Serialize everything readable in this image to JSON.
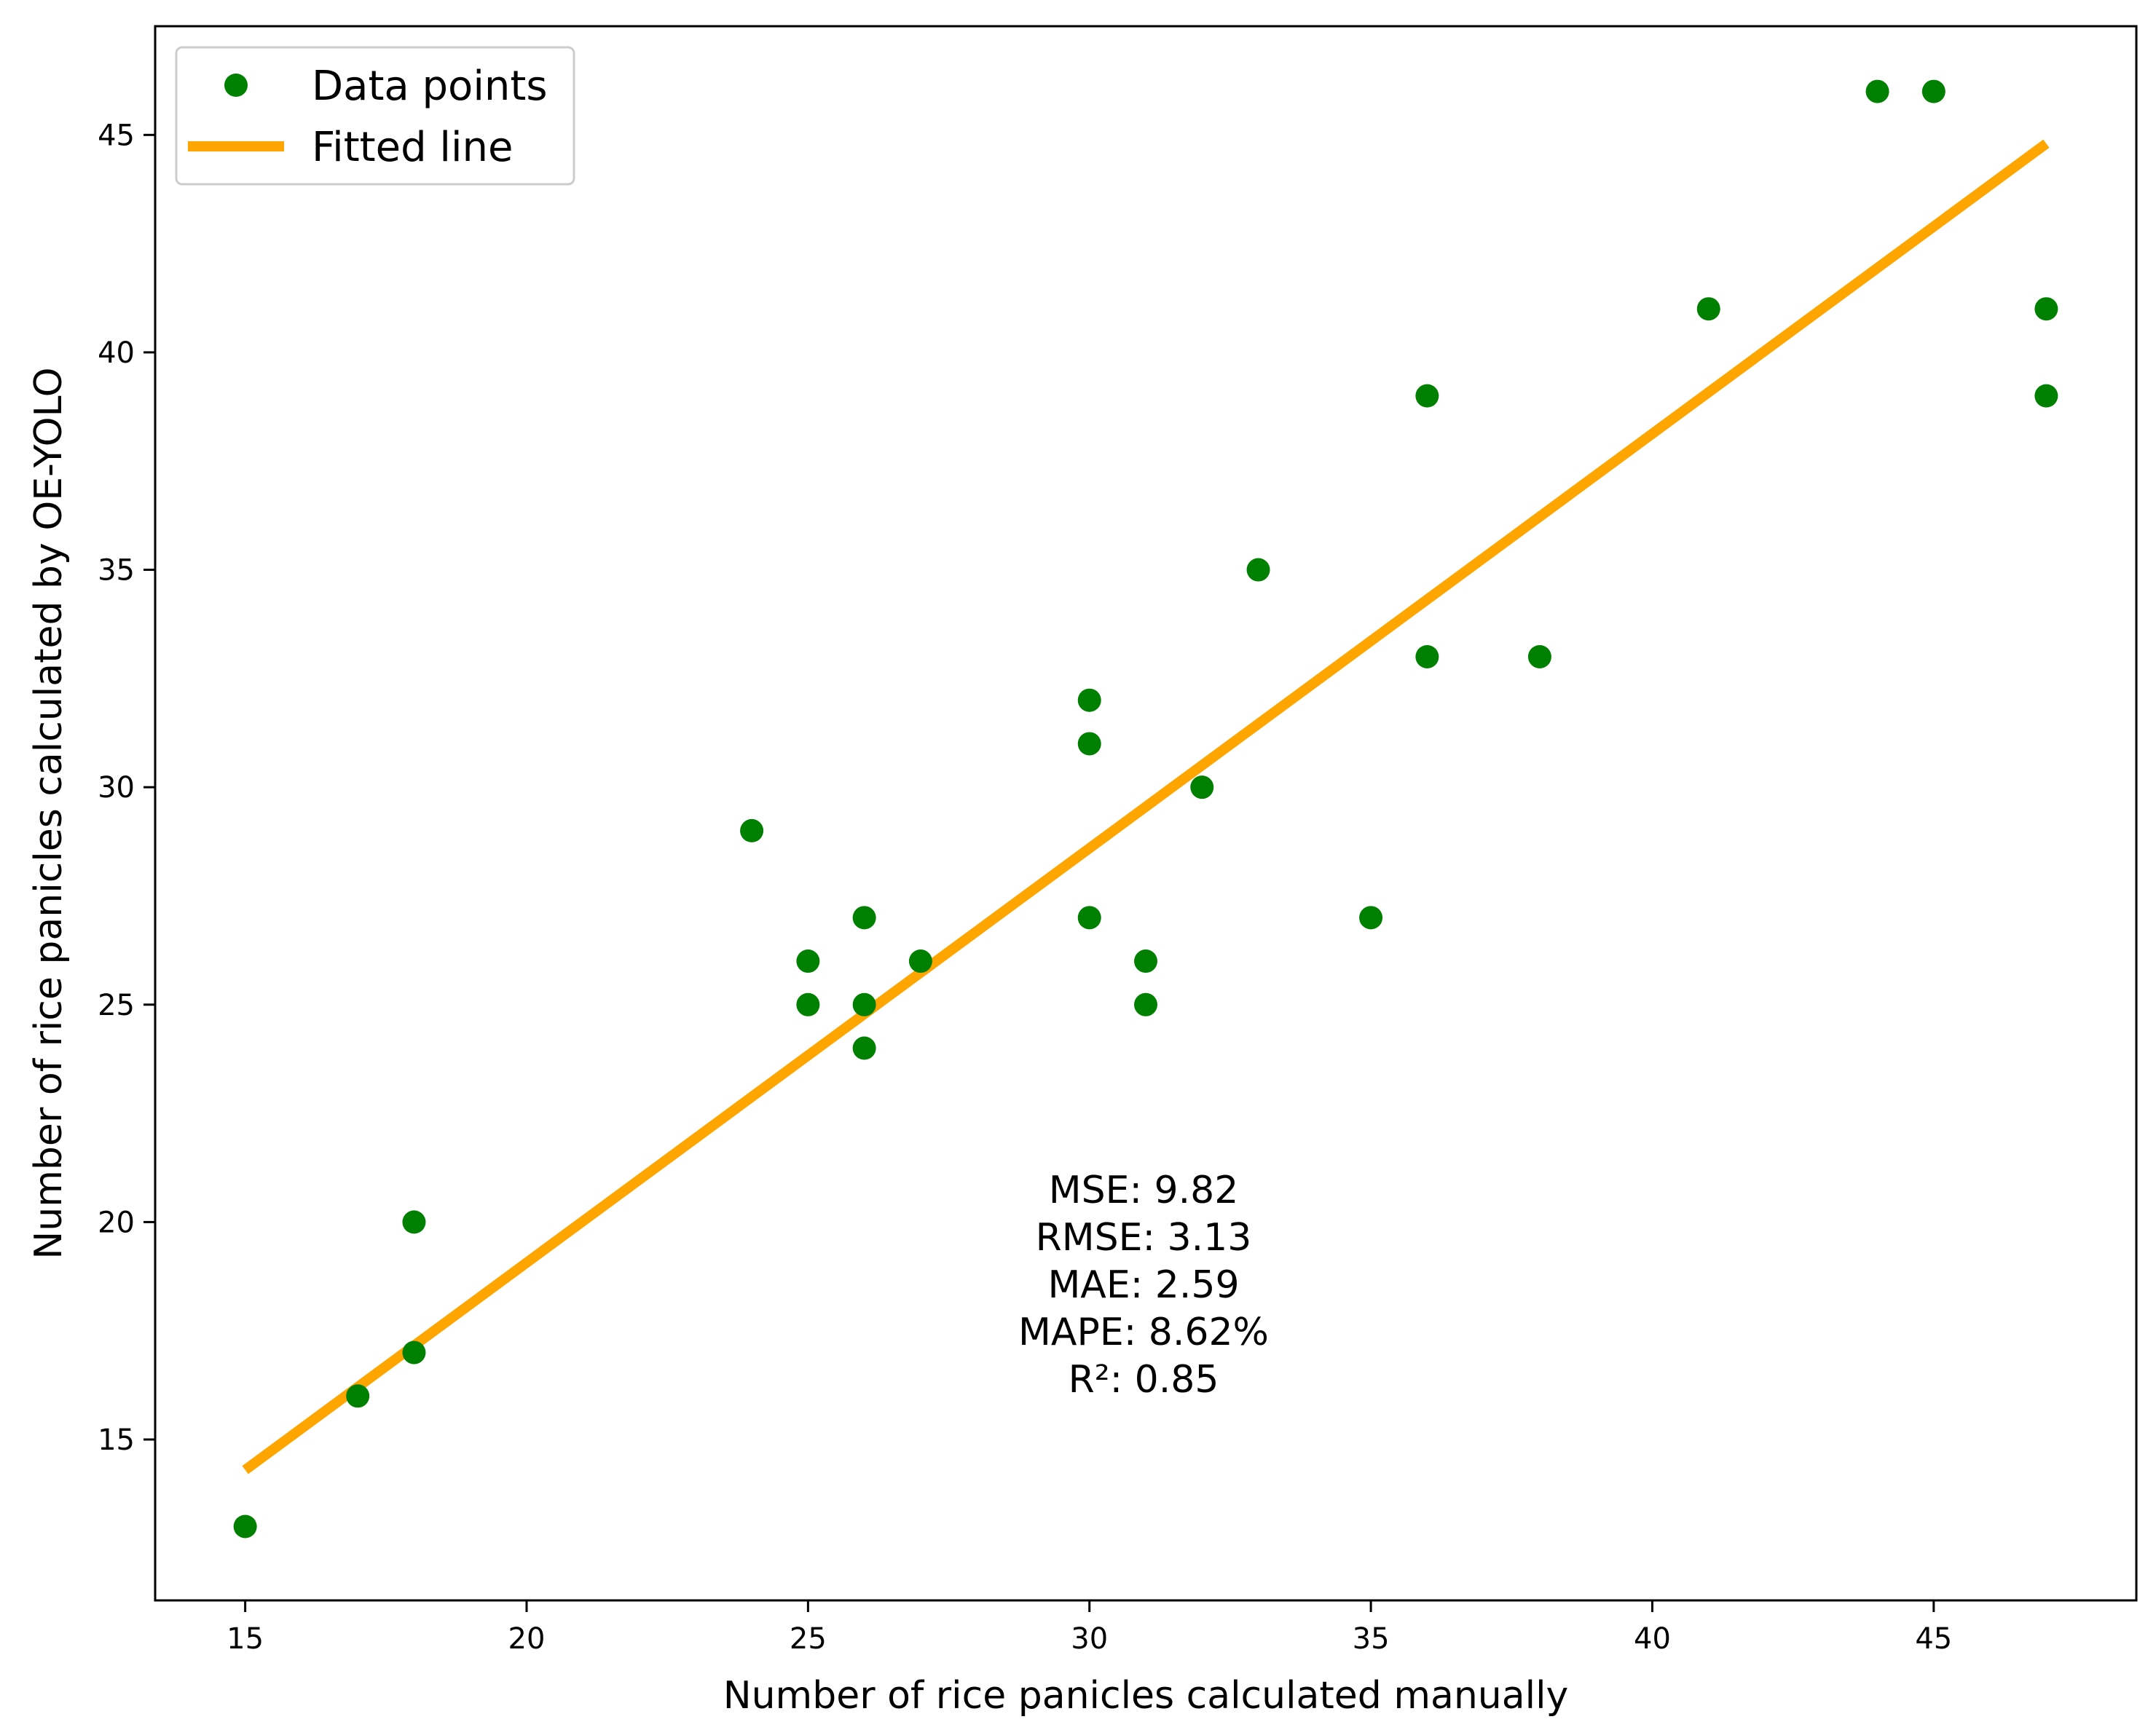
{
  "chart_data": {
    "type": "scatter",
    "title": "",
    "xlabel": "Number of rice panicles calculated manually",
    "ylabel": "Number of rice panicles calculated by OE-YOLO",
    "xlim": [
      13.4,
      48.6
    ],
    "ylim": [
      11.3,
      47.5
    ],
    "xticks": [
      15,
      20,
      25,
      30,
      35,
      40,
      45
    ],
    "yticks": [
      15,
      20,
      25,
      30,
      35,
      40,
      45
    ],
    "grid": false,
    "legend": {
      "position": "top-left",
      "entries": [
        {
          "label": "Data points",
          "kind": "marker",
          "color": "#008000"
        },
        {
          "label": "Fitted line",
          "kind": "line",
          "color": "#ffa500"
        }
      ]
    },
    "series": [
      {
        "name": "Data points",
        "kind": "scatter",
        "color": "#008000",
        "points": [
          [
            15,
            13
          ],
          [
            17,
            16
          ],
          [
            18,
            17
          ],
          [
            18,
            20
          ],
          [
            24,
            29
          ],
          [
            25,
            26
          ],
          [
            25,
            25
          ],
          [
            26,
            27
          ],
          [
            26,
            25
          ],
          [
            26,
            24
          ],
          [
            27,
            26
          ],
          [
            30,
            32
          ],
          [
            30,
            31
          ],
          [
            30,
            27
          ],
          [
            31,
            26
          ],
          [
            31,
            25
          ],
          [
            32,
            30
          ],
          [
            33,
            35
          ],
          [
            35,
            27
          ],
          [
            36,
            39
          ],
          [
            36,
            33
          ],
          [
            38,
            33
          ],
          [
            41,
            41
          ],
          [
            44,
            46
          ],
          [
            45,
            46
          ],
          [
            47,
            41
          ],
          [
            47,
            39
          ]
        ]
      },
      {
        "name": "Fitted line",
        "kind": "line",
        "color": "#ffa500",
        "points": [
          [
            15,
            14.3
          ],
          [
            47,
            44.8
          ]
        ]
      }
    ],
    "annotations": [
      {
        "id": "mse",
        "text": "MSE: 9.82"
      },
      {
        "id": "rmse",
        "text": "RMSE: 3.13"
      },
      {
        "id": "mae",
        "text": "MAE: 2.59"
      },
      {
        "id": "mape",
        "text": "MAPE: 8.62%"
      },
      {
        "id": "r2",
        "text": "R²: 0.85"
      }
    ]
  }
}
